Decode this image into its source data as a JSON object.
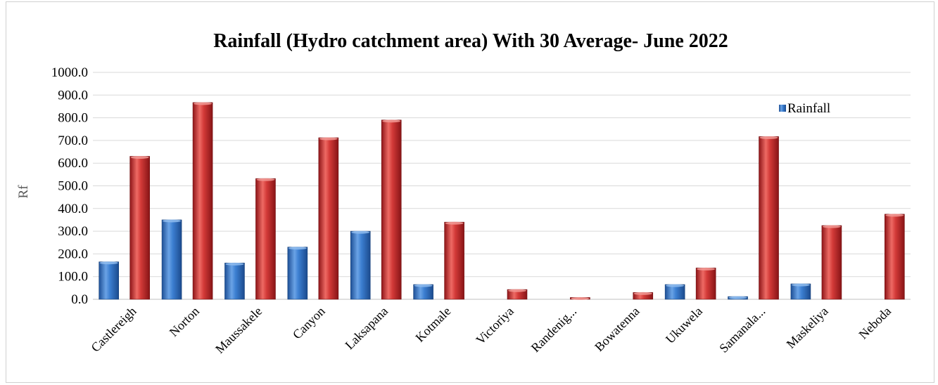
{
  "chart_data": {
    "type": "bar",
    "title": "Rainfall (Hydro catchment area) With 30 Average- June 2022",
    "xlabel": "",
    "ylabel": "Rf",
    "ylim": [
      0,
      1000
    ],
    "yticks": [
      "0.0",
      "100.0",
      "200.0",
      "300.0",
      "400.0",
      "500.0",
      "600.0",
      "700.0",
      "800.0",
      "900.0",
      "1000.0"
    ],
    "grid": true,
    "legend_position": "top-right",
    "categories": [
      "Castlereigh",
      "Norton",
      "Maussakele",
      "Canyon",
      "Laksapana",
      "Kotmale",
      "Victoriya",
      "Randenig...",
      "Bowatenna",
      "Ukuwela",
      "Samanala...",
      "Maskeliya",
      "Neboda"
    ],
    "series": [
      {
        "name": "Rainfall",
        "color": "#2e6fc4",
        "values": [
          165,
          350,
          160,
          230,
          300,
          65,
          0,
          0,
          0,
          65,
          12,
          68,
          0
        ]
      },
      {
        "name": "",
        "color": "#c0282b",
        "values": [
          630,
          867,
          532,
          712,
          790,
          340,
          43,
          8,
          30,
          138,
          717,
          325,
          375
        ]
      }
    ]
  }
}
